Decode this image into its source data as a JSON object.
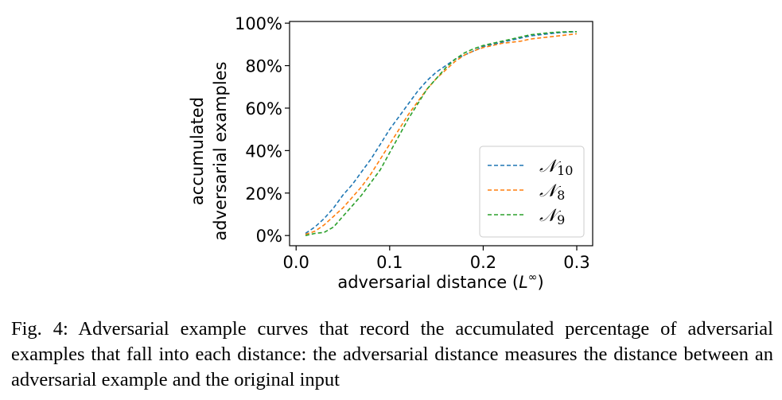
{
  "chart_data": {
    "type": "line",
    "xlabel": "adversarial distance (L∞)",
    "ylabel": [
      "accumulated",
      "adversarial examples"
    ],
    "xlim": [
      -0.007,
      0.317
    ],
    "ylim": [
      -0.048,
      1.008
    ],
    "x_ticks": [
      0.0,
      0.1,
      0.2,
      0.3
    ],
    "x_tick_labels": [
      "0.0",
      "0.1",
      "0.2",
      "0.3"
    ],
    "y_ticks": [
      0,
      0.2,
      0.4,
      0.6,
      0.8,
      1.0
    ],
    "y_tick_labels": [
      "0%",
      "20%",
      "40%",
      "60%",
      "80%",
      "100%"
    ],
    "grid": false,
    "legend_position": "lower-right",
    "line_style": "dashed",
    "series": [
      {
        "name": "𝒩10",
        "label_base": "𝒩",
        "label_sub": "10",
        "color": "#1f77b4",
        "x": [
          0.01,
          0.02,
          0.03,
          0.04,
          0.05,
          0.06,
          0.07,
          0.08,
          0.09,
          0.1,
          0.11,
          0.12,
          0.13,
          0.14,
          0.15,
          0.16,
          0.17,
          0.18,
          0.19,
          0.2,
          0.21,
          0.22,
          0.23,
          0.24,
          0.25,
          0.26,
          0.27,
          0.28,
          0.29,
          0.3
        ],
        "y": [
          0.01,
          0.04,
          0.08,
          0.13,
          0.19,
          0.24,
          0.3,
          0.36,
          0.43,
          0.5,
          0.56,
          0.62,
          0.68,
          0.73,
          0.77,
          0.8,
          0.83,
          0.85,
          0.87,
          0.89,
          0.9,
          0.91,
          0.92,
          0.93,
          0.94,
          0.945,
          0.95,
          0.955,
          0.958,
          0.96
        ]
      },
      {
        "name": "𝒩8",
        "label_base": "𝒩",
        "label_sub": "8",
        "color": "#ff7f0e",
        "x": [
          0.01,
          0.02,
          0.03,
          0.04,
          0.05,
          0.06,
          0.07,
          0.08,
          0.09,
          0.1,
          0.11,
          0.12,
          0.13,
          0.14,
          0.15,
          0.16,
          0.17,
          0.18,
          0.19,
          0.2,
          0.21,
          0.22,
          0.23,
          0.24,
          0.25,
          0.26,
          0.27,
          0.28,
          0.29,
          0.3
        ],
        "y": [
          0.005,
          0.02,
          0.05,
          0.09,
          0.13,
          0.18,
          0.23,
          0.29,
          0.36,
          0.43,
          0.5,
          0.57,
          0.63,
          0.69,
          0.74,
          0.78,
          0.82,
          0.85,
          0.87,
          0.885,
          0.895,
          0.905,
          0.91,
          0.915,
          0.925,
          0.93,
          0.935,
          0.94,
          0.945,
          0.95
        ]
      },
      {
        "name": "𝒩9",
        "label_base": "𝒩",
        "label_sub": "9",
        "color": "#2ca02c",
        "x": [
          0.01,
          0.02,
          0.03,
          0.04,
          0.05,
          0.06,
          0.07,
          0.08,
          0.09,
          0.1,
          0.11,
          0.12,
          0.13,
          0.14,
          0.15,
          0.16,
          0.17,
          0.18,
          0.19,
          0.2,
          0.21,
          0.22,
          0.23,
          0.24,
          0.25,
          0.26,
          0.27,
          0.28,
          0.29,
          0.3
        ],
        "y": [
          0.0,
          0.01,
          0.015,
          0.04,
          0.09,
          0.14,
          0.19,
          0.25,
          0.31,
          0.39,
          0.47,
          0.55,
          0.62,
          0.69,
          0.74,
          0.79,
          0.83,
          0.86,
          0.88,
          0.895,
          0.905,
          0.915,
          0.925,
          0.935,
          0.945,
          0.95,
          0.955,
          0.958,
          0.96,
          0.96
        ]
      }
    ]
  },
  "caption": "Fig. 4: Adversarial example curves that record the accumulated percentage of adversarial examples that fall into each distance: the adversarial distance measures the distance between an adversarial example and the original input"
}
